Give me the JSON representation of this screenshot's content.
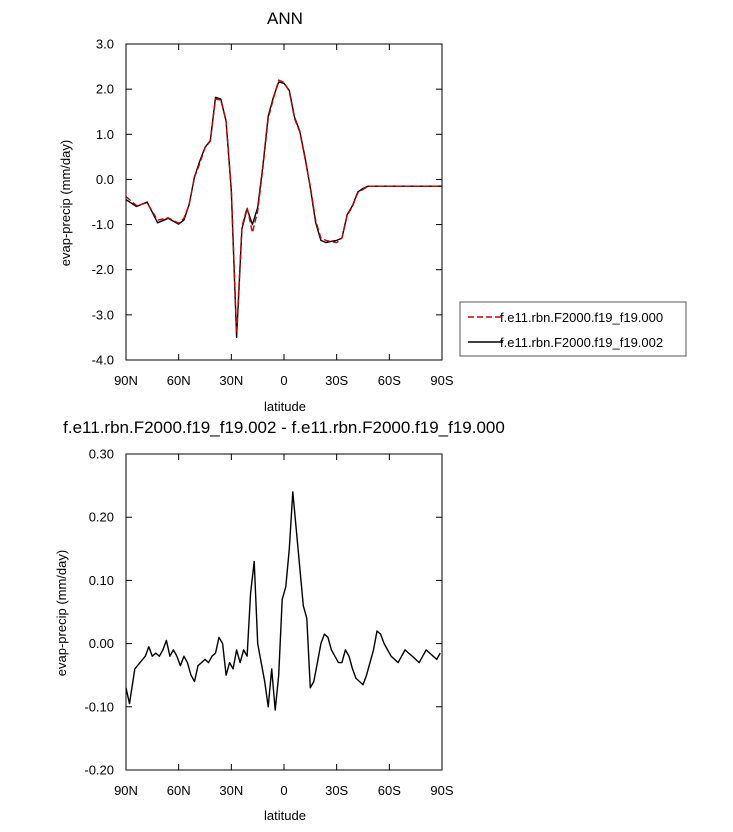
{
  "chart_data": [
    {
      "type": "line",
      "title": "ANN",
      "xlabel": "latitude",
      "ylabel": "evap-precip (mm/day)",
      "xlim": [
        90,
        -90
      ],
      "ylim": [
        -4.0,
        3.0
      ],
      "xticks": [
        {
          "value": 90,
          "label": "90N"
        },
        {
          "value": 60,
          "label": "60N"
        },
        {
          "value": 30,
          "label": "30N"
        },
        {
          "value": 0,
          "label": "0"
        },
        {
          "value": -30,
          "label": "30S"
        },
        {
          "value": -60,
          "label": "60S"
        },
        {
          "value": -90,
          "label": "90S"
        }
      ],
      "yticks": [
        {
          "value": 3.0,
          "label": "3.0"
        },
        {
          "value": 2.0,
          "label": "2.0"
        },
        {
          "value": 1.0,
          "label": "1.0"
        },
        {
          "value": 0.0,
          "label": "0.0"
        },
        {
          "value": -1.0,
          "label": "-1.0"
        },
        {
          "value": -2.0,
          "label": "-2.0"
        },
        {
          "value": -3.0,
          "label": "-3.0"
        },
        {
          "value": -4.0,
          "label": "-4.0"
        }
      ],
      "grid": false,
      "legend": "outside-right",
      "series": [
        {
          "name": "f.e11.rbn.F2000.f19_f19.000",
          "color": "#cc0000",
          "dash": "dashed",
          "x": [
            90,
            84,
            78,
            72,
            66,
            60,
            57,
            54,
            51,
            48,
            45,
            42,
            39,
            36,
            33,
            30,
            27,
            24,
            21,
            18,
            15,
            12,
            9,
            6,
            3,
            0,
            -3,
            -6,
            -9,
            -12,
            -15,
            -18,
            -21,
            -24,
            -27,
            -30,
            -33,
            -36,
            -39,
            -42,
            -45,
            -48,
            -51,
            -54,
            -57,
            -60,
            -63,
            -66,
            -69,
            -72,
            -75,
            -78,
            -81,
            -84,
            -87,
            -90
          ],
          "y": [
            -0.38,
            -0.58,
            -0.52,
            -0.9,
            -0.85,
            -0.97,
            -0.86,
            -0.55,
            0.05,
            0.35,
            0.7,
            0.85,
            1.78,
            1.76,
            1.28,
            -0.2,
            -3.42,
            -1.05,
            -0.62,
            -1.18,
            -0.7,
            0.25,
            1.35,
            1.8,
            2.2,
            2.15,
            1.95,
            1.35,
            1.05,
            0.45,
            -0.15,
            -0.9,
            -1.3,
            -1.35,
            -1.38,
            -1.4,
            -1.3,
            -0.8,
            -0.6,
            -0.3,
            -0.22,
            -0.15,
            -0.15,
            -0.15,
            -0.15,
            -0.15,
            -0.15,
            -0.15,
            -0.15,
            -0.15,
            -0.15,
            -0.15,
            -0.15,
            -0.15,
            -0.15,
            -0.15
          ]
        },
        {
          "name": "f.e11.rbn.F2000.f19_f19.002",
          "color": "#000000",
          "dash": "solid",
          "x": [
            90,
            84,
            78,
            72,
            66,
            60,
            57,
            54,
            51,
            48,
            45,
            42,
            39,
            36,
            33,
            30,
            27,
            24,
            21,
            18,
            15,
            12,
            9,
            6,
            3,
            0,
            -3,
            -6,
            -9,
            -12,
            -15,
            -18,
            -21,
            -24,
            -27,
            -30,
            -33,
            -36,
            -39,
            -42,
            -45,
            -48,
            -51,
            -54,
            -57,
            -60,
            -63,
            -66,
            -69,
            -72,
            -75,
            -78,
            -81,
            -84,
            -87,
            -90
          ],
          "y": [
            -0.45,
            -0.6,
            -0.5,
            -0.96,
            -0.86,
            -0.99,
            -0.9,
            -0.55,
            0.06,
            0.4,
            0.71,
            0.86,
            1.82,
            1.78,
            1.29,
            -0.25,
            -3.5,
            -1.1,
            -0.65,
            -1.0,
            -0.62,
            0.3,
            1.4,
            1.83,
            2.16,
            2.13,
            1.97,
            1.38,
            1.07,
            0.48,
            -0.18,
            -0.95,
            -1.35,
            -1.4,
            -1.37,
            -1.35,
            -1.3,
            -0.78,
            -0.58,
            -0.28,
            -0.2,
            -0.15,
            -0.15,
            -0.15,
            -0.15,
            -0.15,
            -0.15,
            -0.15,
            -0.15,
            -0.15,
            -0.15,
            -0.15,
            -0.15,
            -0.15,
            -0.15,
            -0.15
          ]
        }
      ]
    },
    {
      "type": "line",
      "title": "f.e11.rbn.F2000.f19_f19.002 - f.e11.rbn.F2000.f19_f19.000",
      "xlabel": "latitude",
      "ylabel": "evap-precip (mm/day)",
      "xlim": [
        90,
        -90
      ],
      "ylim": [
        -0.2,
        0.3
      ],
      "xticks": [
        {
          "value": 90,
          "label": "90N"
        },
        {
          "value": 60,
          "label": "60N"
        },
        {
          "value": 30,
          "label": "30N"
        },
        {
          "value": 0,
          "label": "0"
        },
        {
          "value": -30,
          "label": "30S"
        },
        {
          "value": -60,
          "label": "60S"
        },
        {
          "value": -90,
          "label": "90S"
        }
      ],
      "yticks": [
        {
          "value": 0.3,
          "label": "0.30"
        },
        {
          "value": 0.2,
          "label": "0.20"
        },
        {
          "value": 0.1,
          "label": "0.10"
        },
        {
          "value": 0.0,
          "label": "0.00"
        },
        {
          "value": -0.1,
          "label": "-0.10"
        },
        {
          "value": -0.2,
          "label": "-0.20"
        }
      ],
      "grid": false,
      "series": [
        {
          "name": "",
          "color": "#000000",
          "dash": "solid",
          "x": [
            90,
            88,
            85,
            82,
            79,
            77,
            75,
            73,
            71,
            69,
            67,
            65,
            63,
            61,
            59,
            57,
            55,
            53,
            51,
            49,
            47,
            45,
            43,
            41,
            39,
            37,
            35,
            33,
            31,
            29,
            27,
            25,
            23,
            21,
            19,
            17,
            15,
            13,
            11,
            9,
            7,
            5,
            3,
            1,
            -1,
            -3,
            -5,
            -7,
            -9,
            -11,
            -13,
            -15,
            -17,
            -19,
            -21,
            -23,
            -25,
            -27,
            -29,
            -31,
            -33,
            -35,
            -37,
            -39,
            -41,
            -43,
            -45,
            -47,
            -49,
            -51,
            -53,
            -55,
            -57,
            -59,
            -61,
            -63,
            -65,
            -67,
            -69,
            -71,
            -73,
            -75,
            -77,
            -79,
            -81,
            -83,
            -85,
            -87,
            -89
          ],
          "y": [
            -0.07,
            -0.095,
            -0.04,
            -0.03,
            -0.02,
            -0.005,
            -0.02,
            -0.015,
            -0.02,
            -0.01,
            0.005,
            -0.02,
            -0.01,
            -0.02,
            -0.035,
            -0.02,
            -0.03,
            -0.05,
            -0.06,
            -0.035,
            -0.03,
            -0.025,
            -0.03,
            -0.02,
            -0.015,
            0.01,
            0.0,
            -0.05,
            -0.03,
            -0.04,
            -0.01,
            -0.03,
            -0.01,
            -0.02,
            0.08,
            0.13,
            0.0,
            -0.03,
            -0.06,
            -0.1,
            -0.04,
            -0.105,
            -0.05,
            0.07,
            0.09,
            0.15,
            0.24,
            0.18,
            0.12,
            0.06,
            0.04,
            -0.07,
            -0.06,
            -0.03,
            0.0,
            0.015,
            0.01,
            -0.01,
            -0.02,
            -0.03,
            -0.03,
            -0.01,
            -0.02,
            -0.04,
            -0.055,
            -0.06,
            -0.065,
            -0.05,
            -0.03,
            -0.01,
            0.02,
            0.015,
            0.0,
            -0.01,
            -0.02,
            -0.025,
            -0.03,
            -0.02,
            -0.01,
            -0.015,
            -0.02,
            -0.025,
            -0.03,
            -0.02,
            -0.01,
            -0.015,
            -0.02,
            -0.025,
            -0.015
          ]
        }
      ]
    }
  ]
}
